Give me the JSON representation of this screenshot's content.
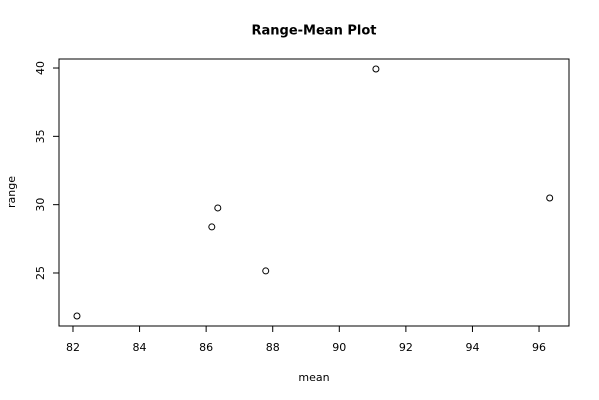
{
  "chart_data": {
    "type": "scatter",
    "title": "Range-Mean Plot",
    "x_label": "mean",
    "y_label": "range",
    "series": [
      {
        "name": "",
        "color": "#000000",
        "x": [
          82.12,
          86.17,
          86.35,
          87.79,
          91.1,
          96.32
        ],
        "values": [
          21.85,
          28.37,
          29.76,
          25.15,
          39.93,
          30.49
        ]
      }
    ],
    "xlim": [
      81.58,
      96.9
    ],
    "xticks": [
      82,
      84,
      86,
      88,
      90,
      92,
      94,
      96
    ],
    "ylim": [
      21.12,
      40.66
    ],
    "yticks": [
      25,
      30,
      35,
      40
    ]
  }
}
